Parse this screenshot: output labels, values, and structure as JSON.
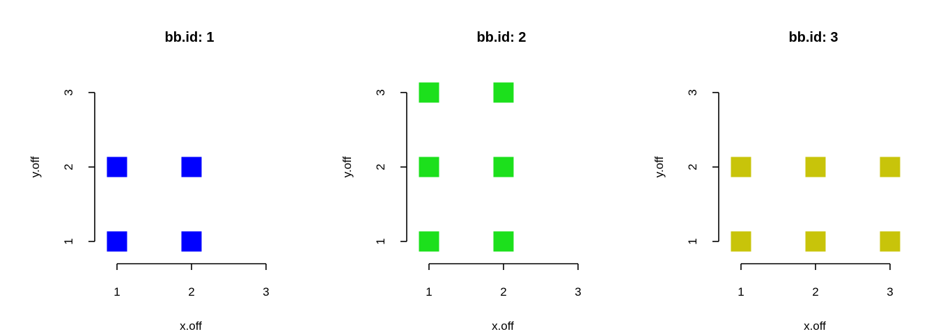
{
  "chart_data": [
    {
      "type": "scatter",
      "title": "bb.id: 1",
      "xlabel": "x.off",
      "ylabel": "y.off",
      "xlim": [
        1,
        3
      ],
      "ylim": [
        1,
        3
      ],
      "x_ticks": [
        "1",
        "2",
        "3"
      ],
      "y_ticks": [
        "1",
        "2",
        "3"
      ],
      "marker": "square",
      "color": "#0000FF",
      "points": [
        {
          "x": 1,
          "y": 1
        },
        {
          "x": 2,
          "y": 1
        },
        {
          "x": 1,
          "y": 2
        },
        {
          "x": 2,
          "y": 2
        }
      ]
    },
    {
      "type": "scatter",
      "title": "bb.id: 2",
      "xlabel": "x.off",
      "ylabel": "y.off",
      "xlim": [
        1,
        3
      ],
      "ylim": [
        1,
        3
      ],
      "x_ticks": [
        "1",
        "2",
        "3"
      ],
      "y_ticks": [
        "1",
        "2",
        "3"
      ],
      "marker": "square",
      "color": "#1CE01C",
      "points": [
        {
          "x": 1,
          "y": 1
        },
        {
          "x": 2,
          "y": 1
        },
        {
          "x": 1,
          "y": 2
        },
        {
          "x": 2,
          "y": 2
        },
        {
          "x": 1,
          "y": 3
        },
        {
          "x": 2,
          "y": 3
        }
      ]
    },
    {
      "type": "scatter",
      "title": "bb.id: 3",
      "xlabel": "x.off",
      "ylabel": "y.off",
      "xlim": [
        1,
        3
      ],
      "ylim": [
        1,
        3
      ],
      "x_ticks": [
        "1",
        "2",
        "3"
      ],
      "y_ticks": [
        "1",
        "2",
        "3"
      ],
      "marker": "square",
      "color": "#C8C40A",
      "points": [
        {
          "x": 1,
          "y": 1
        },
        {
          "x": 2,
          "y": 1
        },
        {
          "x": 3,
          "y": 1
        },
        {
          "x": 1,
          "y": 2
        },
        {
          "x": 2,
          "y": 2
        },
        {
          "x": 3,
          "y": 2
        }
      ]
    }
  ]
}
